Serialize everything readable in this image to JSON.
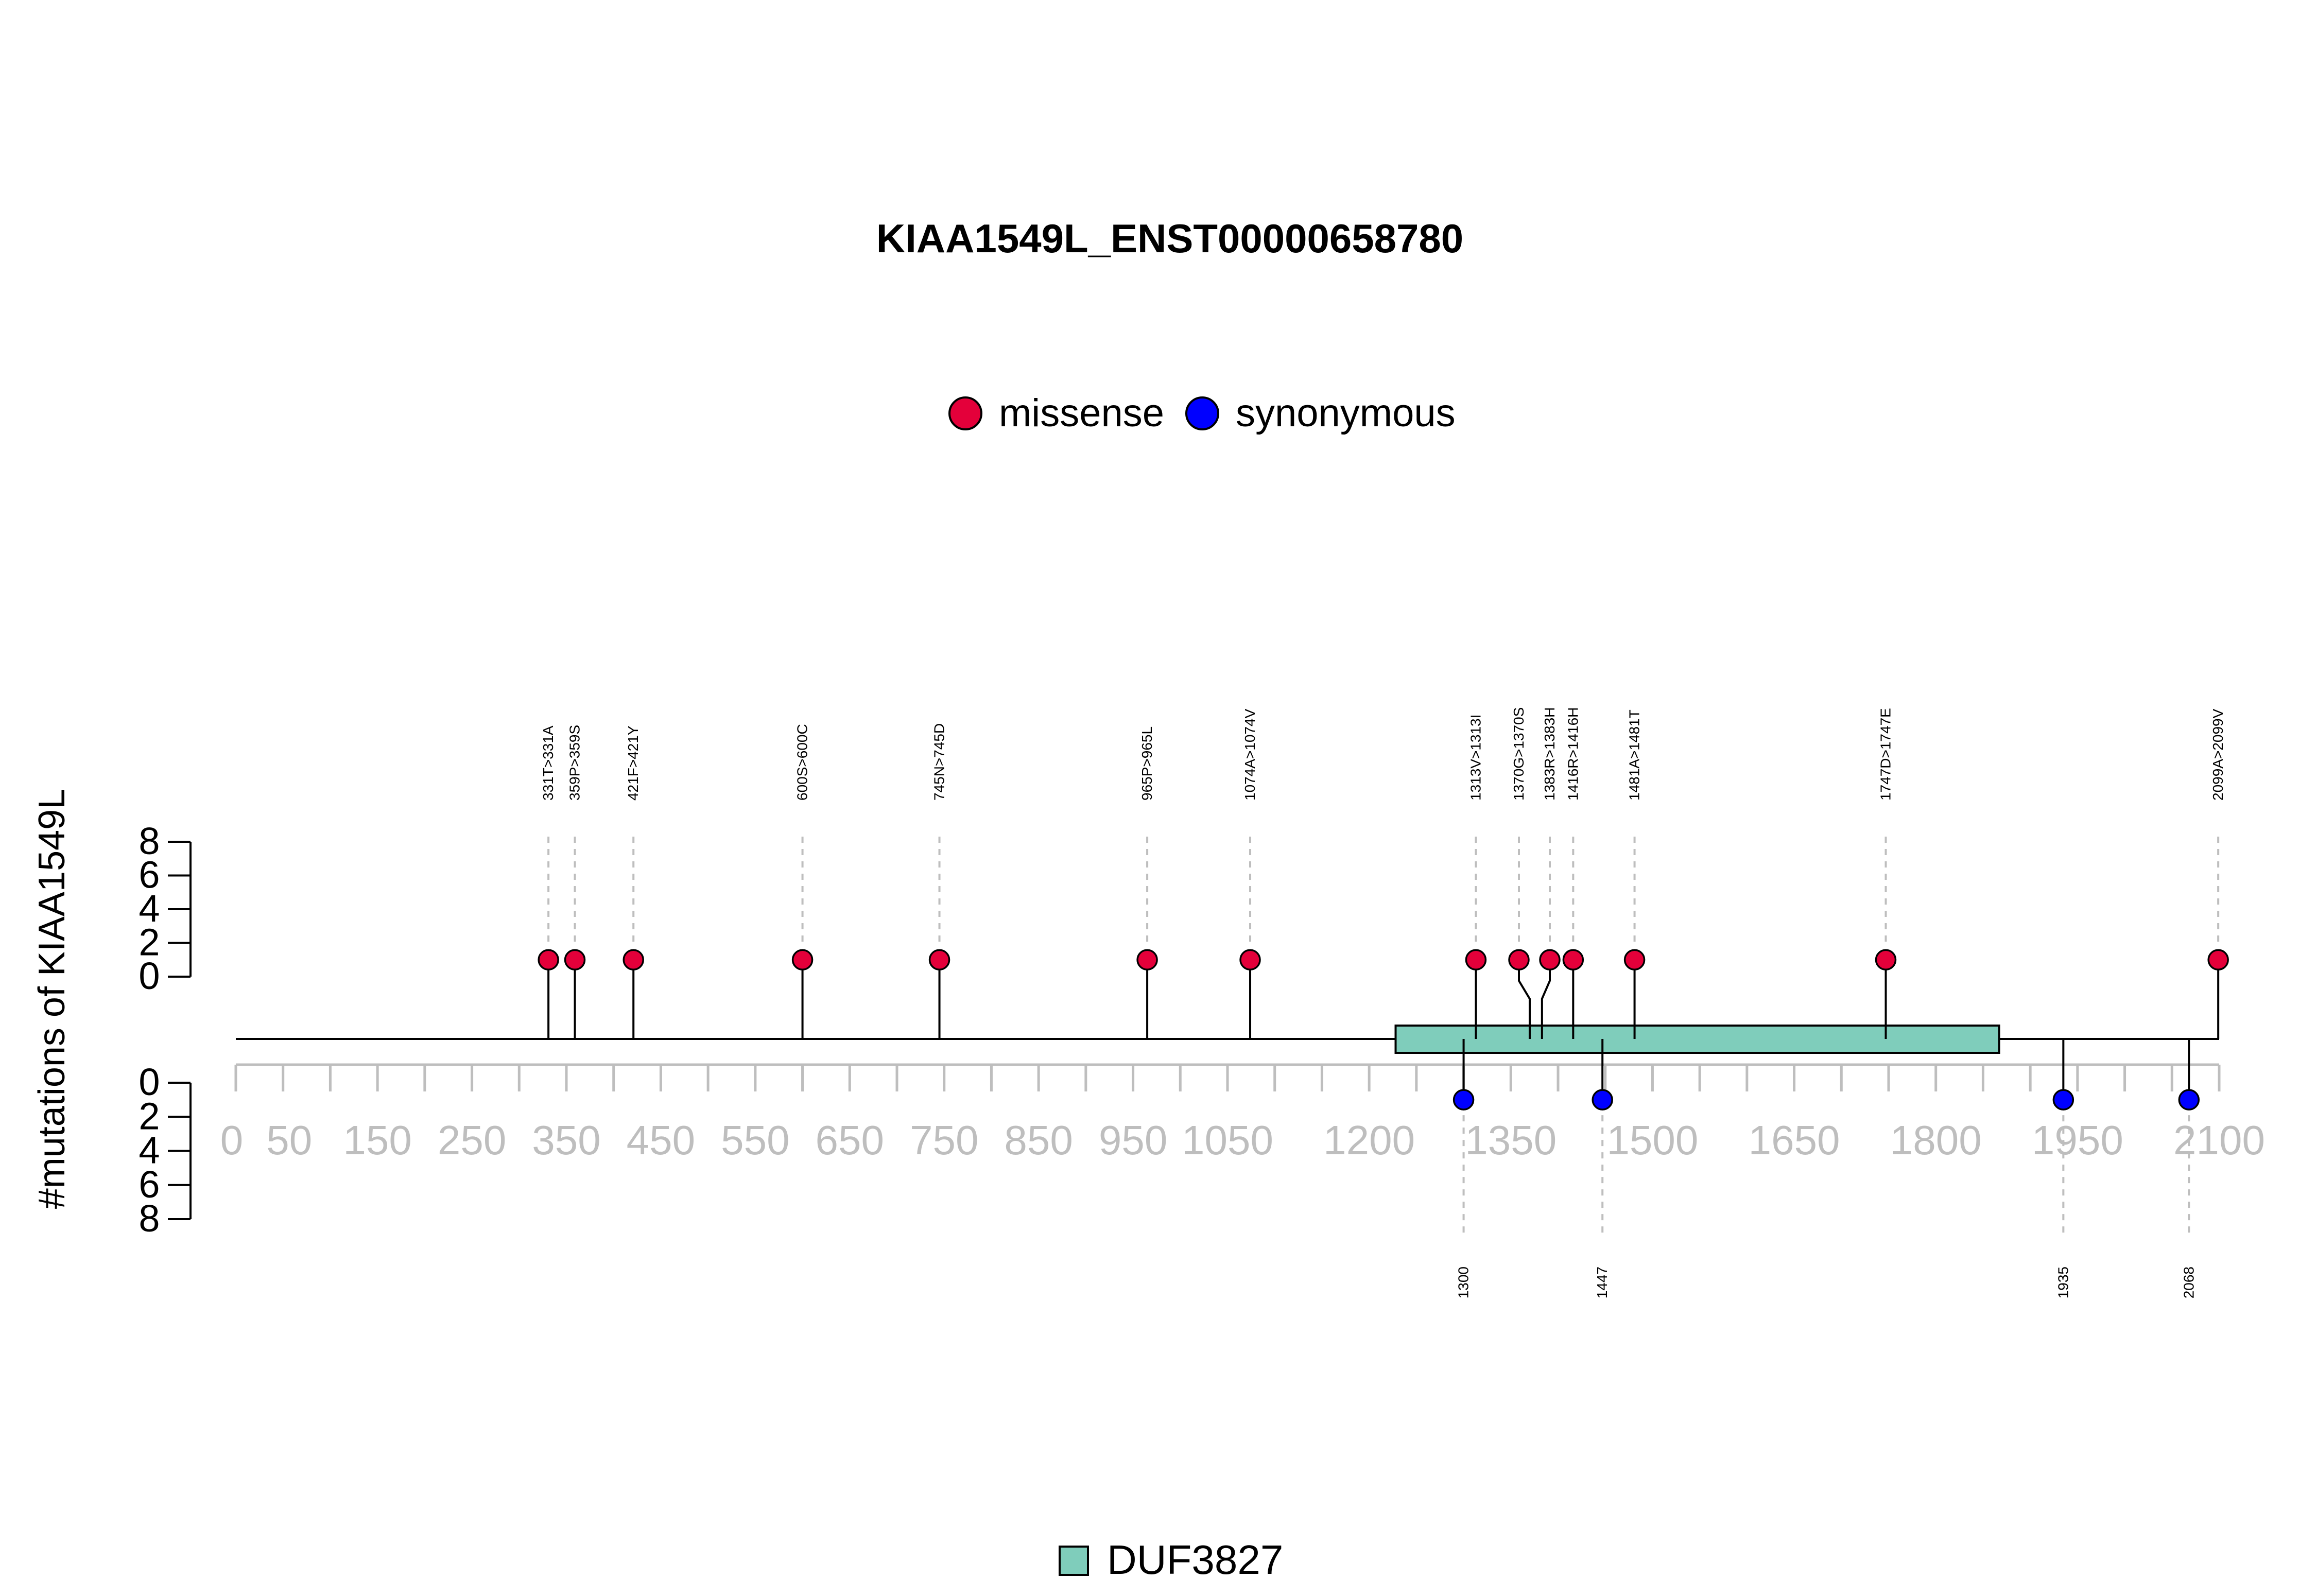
{
  "chart_data": {
    "type": "lollipop",
    "title": "KIAA1549L_ENST00000658780",
    "ylabel": "#mutations of KIAA1549L",
    "legend": [
      {
        "name": "missense",
        "color": "#E4003A"
      },
      {
        "name": "synonymous",
        "color": "#0000FF"
      }
    ],
    "protein_length": 2100,
    "x_ticks_labeled": [
      0,
      50,
      150,
      250,
      350,
      450,
      550,
      650,
      750,
      850,
      950,
      1050,
      1200,
      1350,
      1500,
      1650,
      1800,
      1950,
      2100
    ],
    "x_tick_labels": [
      "0",
      "50",
      "150",
      "250",
      "350",
      "450",
      "550",
      "650",
      "750",
      "850",
      "950",
      "1050",
      "1200",
      "1350",
      "1500",
      "1650",
      "1800",
      "1950",
      "2100"
    ],
    "y_ticks": [
      0,
      2,
      4,
      6,
      8
    ],
    "y_tick_labels": [
      "0",
      "2",
      "4",
      "6",
      "8"
    ],
    "ylim": [
      0,
      8
    ],
    "missense": [
      {
        "pos": 331,
        "count": 1,
        "label": "331T>331A"
      },
      {
        "pos": 359,
        "count": 1,
        "label": "359P>359S"
      },
      {
        "pos": 421,
        "count": 1,
        "label": "421F>421Y"
      },
      {
        "pos": 600,
        "count": 1,
        "label": "600S>600C"
      },
      {
        "pos": 745,
        "count": 1,
        "label": "745N>745D"
      },
      {
        "pos": 965,
        "count": 1,
        "label": "965P>965L"
      },
      {
        "pos": 1074,
        "count": 1,
        "label": "1074A>1074V"
      },
      {
        "pos": 1313,
        "count": 1,
        "label": "1313V>1313I"
      },
      {
        "pos": 1370,
        "count": 1,
        "label": "1370G>1370S"
      },
      {
        "pos": 1383,
        "count": 1,
        "label": "1383R>1383H"
      },
      {
        "pos": 1416,
        "count": 1,
        "label": "1416R>1416H"
      },
      {
        "pos": 1481,
        "count": 1,
        "label": "1481A>1481T"
      },
      {
        "pos": 1747,
        "count": 1,
        "label": "1747D>1747E"
      },
      {
        "pos": 2099,
        "count": 1,
        "label": "2099A>2099V"
      }
    ],
    "synonymous": [
      {
        "pos": 1300,
        "count": 1,
        "label": "1300"
      },
      {
        "pos": 1447,
        "count": 1,
        "label": "1447"
      },
      {
        "pos": 1935,
        "count": 1,
        "label": "1935"
      },
      {
        "pos": 2068,
        "count": 1,
        "label": "2068"
      }
    ],
    "domains": [
      {
        "name": "DUF3827",
        "start": 1228,
        "end": 1867,
        "color": "#7FCDBB"
      }
    ]
  }
}
